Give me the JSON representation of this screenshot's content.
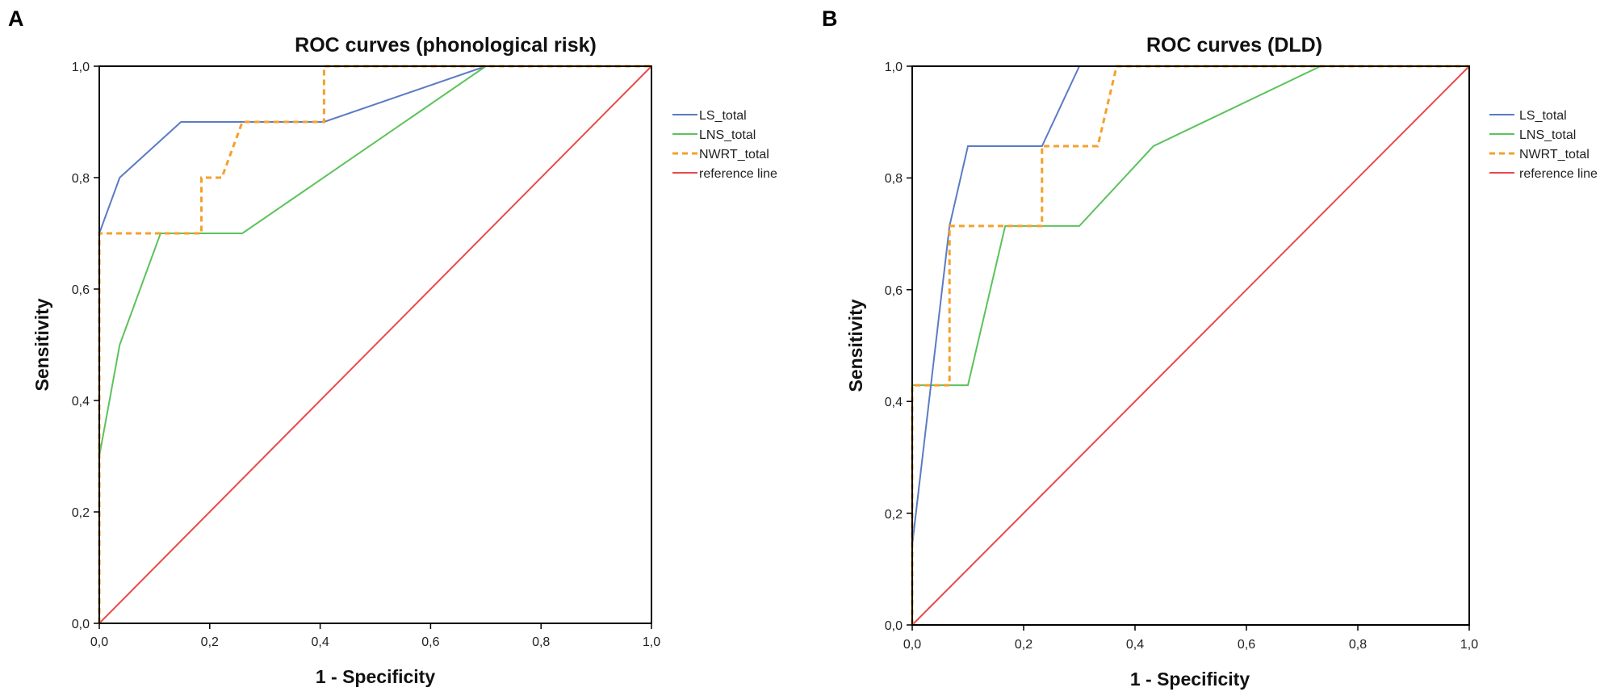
{
  "chart_data": [
    {
      "type": "line",
      "panel": "A",
      "title": "ROC curves (phonological risk)",
      "xlabel": "1 - Specificity",
      "ylabel": "Sensitivity",
      "xlim": [
        0,
        1
      ],
      "ylim": [
        0,
        1
      ],
      "xticks": [
        "0,0",
        "0,2",
        "0,4",
        "0,6",
        "0,8",
        "1,0"
      ],
      "yticks": [
        "0,0",
        "0,2",
        "0,4",
        "0,6",
        "0,8",
        "1,0"
      ],
      "legend_position": "right",
      "series": [
        {
          "name": "LS_total",
          "color": "#5b7bc4",
          "dash": false,
          "points": [
            [
              0,
              0
            ],
            [
              0,
              0.7
            ],
            [
              0.037,
              0.8
            ],
            [
              0.148,
              0.9
            ],
            [
              0.407,
              0.9
            ],
            [
              0.7,
              1.0
            ],
            [
              1,
              1
            ]
          ]
        },
        {
          "name": "LNS_total",
          "color": "#5cc25c",
          "dash": false,
          "points": [
            [
              0,
              0
            ],
            [
              0,
              0.3
            ],
            [
              0.037,
              0.5
            ],
            [
              0.111,
              0.7
            ],
            [
              0.259,
              0.7
            ],
            [
              0.7,
              1.0
            ],
            [
              1,
              1
            ]
          ]
        },
        {
          "name": "NWRT_total",
          "color": "#f5a02c",
          "dash": true,
          "points": [
            [
              0,
              0
            ],
            [
              0,
              0.7
            ],
            [
              0.185,
              0.7
            ],
            [
              0.185,
              0.8
            ],
            [
              0.222,
              0.8
            ],
            [
              0.259,
              0.9
            ],
            [
              0.407,
              0.9
            ],
            [
              0.407,
              1.0
            ],
            [
              1,
              1
            ]
          ]
        },
        {
          "name": "reference line",
          "color": "#e84a4a",
          "dash": false,
          "points": [
            [
              0,
              0
            ],
            [
              1,
              1
            ]
          ]
        }
      ]
    },
    {
      "type": "line",
      "panel": "B",
      "title": "ROC curves (DLD)",
      "xlabel": "1 - Specificity",
      "ylabel": "Sensitivity",
      "xlim": [
        0,
        1
      ],
      "ylim": [
        0,
        1
      ],
      "xticks": [
        "0,0",
        "0,2",
        "0,4",
        "0,6",
        "0,8",
        "1,0"
      ],
      "yticks": [
        "0,0",
        "0,2",
        "0,4",
        "0,6",
        "0,8",
        "1,0"
      ],
      "legend_position": "right",
      "series": [
        {
          "name": "LS_total",
          "color": "#5b7bc4",
          "dash": false,
          "points": [
            [
              0,
              0
            ],
            [
              0,
              0.143
            ],
            [
              0.067,
              0.714
            ],
            [
              0.1,
              0.857
            ],
            [
              0.233,
              0.857
            ],
            [
              0.3,
              1.0
            ],
            [
              1,
              1
            ]
          ]
        },
        {
          "name": "LNS_total",
          "color": "#5cc25c",
          "dash": false,
          "points": [
            [
              0,
              0
            ],
            [
              0,
              0.429
            ],
            [
              0.1,
              0.429
            ],
            [
              0.167,
              0.714
            ],
            [
              0.3,
              0.714
            ],
            [
              0.433,
              0.857
            ],
            [
              0.733,
              1.0
            ],
            [
              1,
              1
            ]
          ]
        },
        {
          "name": "NWRT_total",
          "color": "#f5a02c",
          "dash": true,
          "points": [
            [
              0,
              0
            ],
            [
              0,
              0.429
            ],
            [
              0.067,
              0.429
            ],
            [
              0.067,
              0.714
            ],
            [
              0.233,
              0.714
            ],
            [
              0.233,
              0.857
            ],
            [
              0.333,
              0.857
            ],
            [
              0.367,
              1.0
            ],
            [
              1,
              1
            ]
          ]
        },
        {
          "name": "reference line",
          "color": "#e84a4a",
          "dash": false,
          "points": [
            [
              0,
              0
            ],
            [
              1,
              1
            ]
          ]
        }
      ]
    }
  ]
}
